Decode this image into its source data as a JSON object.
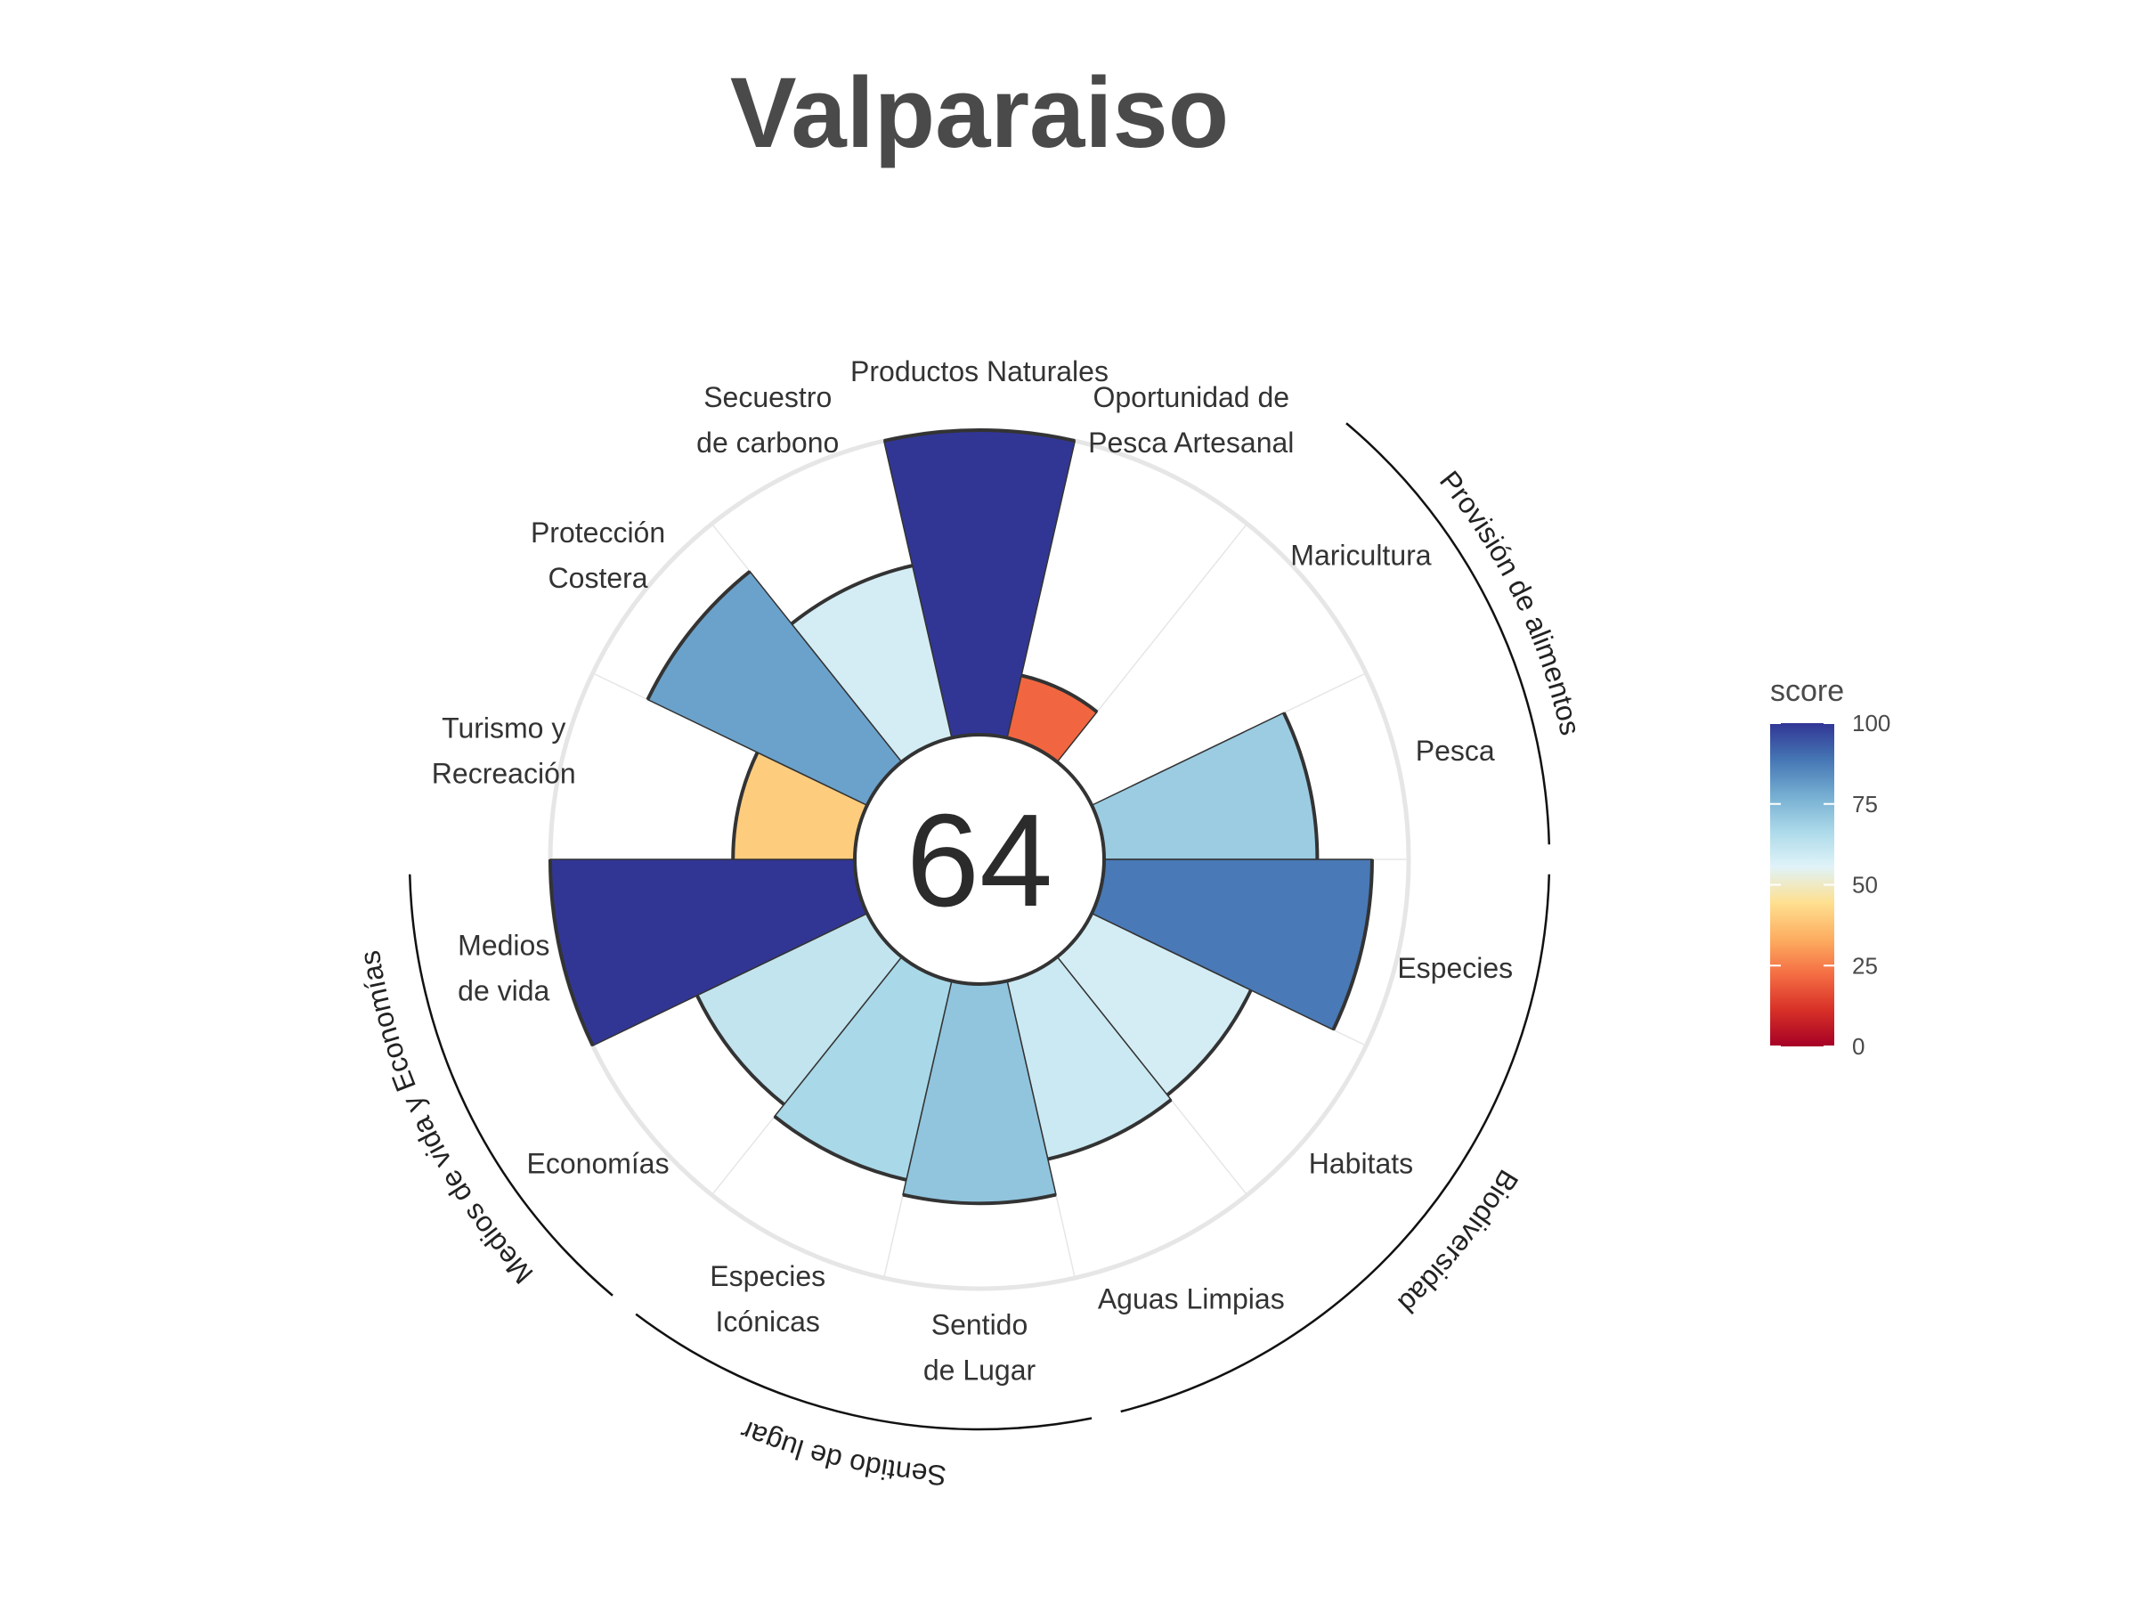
{
  "chart_data": {
    "type": "flower",
    "title": "Valparaiso",
    "center_score": "64",
    "goals": [
      {
        "label": [
          "Productos Naturales"
        ],
        "score": 100
      },
      {
        "label": [
          "Oportunidad de",
          "Pesca Artesanal"
        ],
        "score": 21
      },
      {
        "label": [
          "Maricultura"
        ],
        "score": 0
      },
      {
        "label": [
          "Pesca"
        ],
        "score": 70
      },
      {
        "label": [
          "Especies"
        ],
        "score": 88
      },
      {
        "label": [
          "Habitats"
        ],
        "score": 58
      },
      {
        "label": [
          "Aguas Limpias"
        ],
        "score": 60
      },
      {
        "label": [
          "Sentido",
          "de Lugar"
        ],
        "score": 72
      },
      {
        "label": [
          "Especies",
          "Icónicas"
        ],
        "score": 67
      },
      {
        "label": [
          "Economías"
        ],
        "score": 62
      },
      {
        "label": [
          "Medios",
          "de vida"
        ],
        "score": 100
      },
      {
        "label": [
          "Turismo y",
          "Recreación"
        ],
        "score": 40
      },
      {
        "label": [
          "Protección",
          "Costera"
        ],
        "score": 80
      },
      {
        "label": [
          "Secuestro",
          "de carbono"
        ],
        "score": 58
      }
    ],
    "groups": [
      {
        "label": "Provisión de alimentos"
      },
      {
        "label": "Biodiversidad"
      },
      {
        "label": "Sentido de lugar"
      },
      {
        "label": "Medios de vida y Economías"
      }
    ],
    "legend": {
      "title": "score",
      "ticks": [
        "0",
        "25",
        "50",
        "75",
        "100"
      ],
      "range": [
        0,
        100
      ],
      "palette": [
        "#a50026",
        "#d73027",
        "#f46d43",
        "#fdae61",
        "#fee090",
        "#e0f3f8",
        "#abd9e9",
        "#74add1",
        "#4575b4",
        "#313695"
      ]
    }
  }
}
